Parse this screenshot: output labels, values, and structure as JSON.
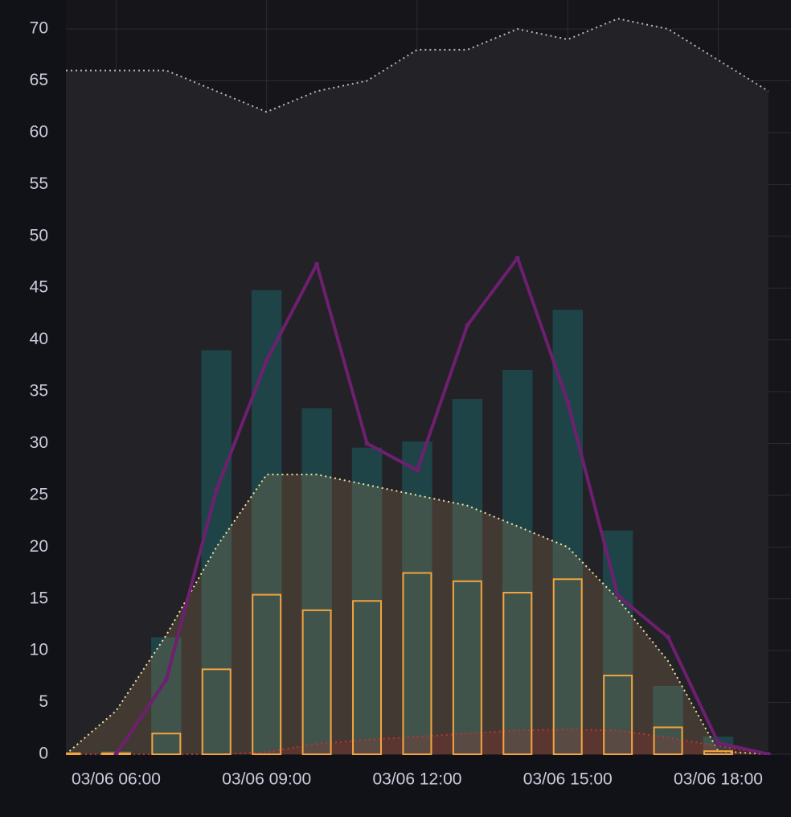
{
  "chart_data": {
    "type": "combo",
    "x": [
      5,
      6,
      7,
      8,
      9,
      10,
      11,
      12,
      13,
      14,
      15,
      16,
      17,
      18,
      19
    ],
    "xlim": [
      5,
      19.45
    ],
    "xticks": [
      {
        "value": 6,
        "label": "03/06 06:00"
      },
      {
        "value": 9,
        "label": "03/06 09:00"
      },
      {
        "value": 12,
        "label": "03/06 12:00"
      },
      {
        "value": 15,
        "label": "03/06 15:00"
      },
      {
        "value": 18,
        "label": "03/06 18:00"
      }
    ],
    "ylim": [
      0,
      72.8
    ],
    "yticks": [
      0,
      5,
      10,
      15,
      20,
      25,
      30,
      35,
      40,
      45,
      50,
      55,
      60,
      65,
      70
    ],
    "grid": true,
    "series": [
      {
        "type": "area",
        "color": "#b8b8c0",
        "fill": "#222227",
        "values": [
          66,
          66,
          66,
          64,
          62,
          64,
          65,
          68,
          68,
          70,
          69,
          71,
          70,
          67,
          64
        ]
      },
      {
        "type": "bar",
        "color": "#1e4a4f",
        "values": [
          0,
          0.3,
          11.3,
          39,
          44.8,
          33.4,
          29.6,
          30.2,
          34.3,
          37.1,
          42.9,
          21.6,
          6.6,
          1.7,
          0
        ]
      },
      {
        "type": "area",
        "color": "#efe3a0",
        "fill": "rgba(180,140,90,0.22)",
        "values": [
          0,
          4.2,
          11.5,
          20,
          27,
          27,
          26,
          25,
          24,
          22,
          20,
          15,
          9,
          0.3,
          0
        ]
      },
      {
        "type": "area",
        "color": "#c4312f",
        "fill": "rgba(180,40,40,0.22)",
        "values": [
          0,
          0,
          0,
          0,
          0.2,
          1,
          1.4,
          1.7,
          2,
          2.3,
          2.4,
          2.3,
          1.6,
          0.8,
          0
        ]
      },
      {
        "type": "bar-outline",
        "color": "#f5a33c",
        "values": [
          0.1,
          0.1,
          2,
          8.2,
          15.4,
          13.9,
          14.8,
          17.5,
          16.7,
          15.6,
          16.9,
          7.6,
          2.6,
          0.3,
          0
        ]
      },
      {
        "type": "line",
        "color": "#6f1f6f",
        "values": [
          null,
          0,
          7.2,
          25.5,
          38,
          47.3,
          30,
          27.4,
          41.4,
          47.9,
          34,
          15.3,
          11.3,
          1.1,
          0
        ]
      }
    ]
  }
}
